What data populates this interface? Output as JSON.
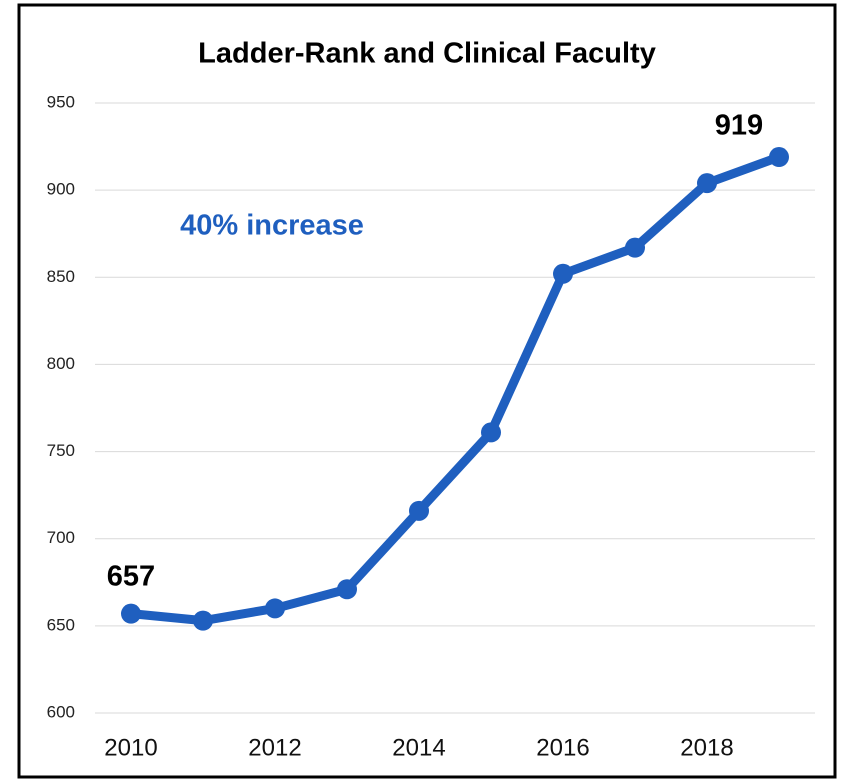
{
  "chart_data": {
    "type": "line",
    "title": "Ladder-Rank and Clinical Faculty",
    "annotation": "40% increase",
    "x": [
      2010,
      2011,
      2012,
      2013,
      2014,
      2015,
      2016,
      2017,
      2018,
      2019
    ],
    "values": [
      657,
      653,
      660,
      671,
      716,
      761,
      852,
      867,
      904,
      919
    ],
    "color": "#1f5fbf",
    "xlim": [
      2009.5,
      2019.5
    ],
    "xticks": [
      2010,
      2012,
      2014,
      2016,
      2018
    ],
    "ylim": [
      600,
      950
    ],
    "yticks": [
      600,
      650,
      700,
      750,
      800,
      850,
      900,
      950
    ],
    "grid": true
  }
}
